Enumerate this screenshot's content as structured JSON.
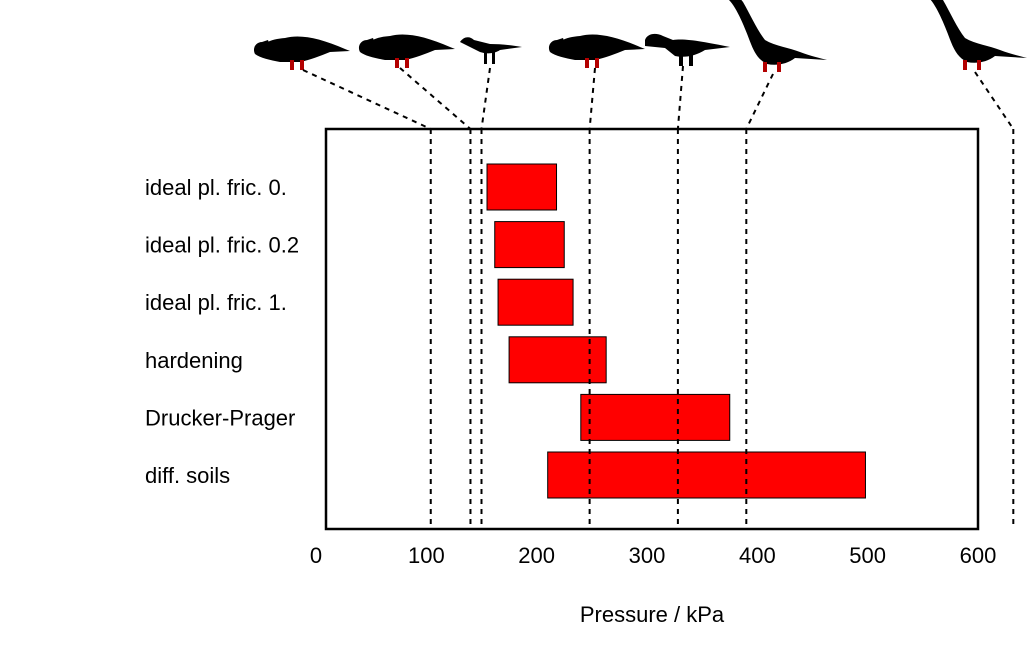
{
  "chart_data": {
    "type": "bar",
    "orientation": "horizontal",
    "title": "",
    "xlabel": "Pressure / kPa",
    "ylabel": "",
    "xlim": [
      0,
      600
    ],
    "xticks": [
      0,
      100,
      200,
      300,
      400,
      500,
      600
    ],
    "grid": false,
    "bar_color": "#ff0000",
    "categories": [
      "ideal pl. fric. 0.",
      "ideal pl. fric. 0.2",
      "ideal pl. fric. 1.",
      "hardening",
      "Drucker-Prager",
      "diff. soils"
    ],
    "ranges": [
      [
        155,
        218
      ],
      [
        162,
        225
      ],
      [
        165,
        233
      ],
      [
        175,
        263
      ],
      [
        240,
        375
      ],
      [
        210,
        498
      ]
    ],
    "reference_lines": [
      {
        "name": "hadrosaur-1",
        "value": 104,
        "silhouette": "hadrosaur"
      },
      {
        "name": "hadrosaur-2",
        "value": 140,
        "silhouette": "hadrosaur"
      },
      {
        "name": "small-theropod",
        "value": 150,
        "silhouette": "small-theropod"
      },
      {
        "name": "hadrosaur-3",
        "value": 248,
        "silhouette": "hadrosaur"
      },
      {
        "name": "theropod",
        "value": 328,
        "silhouette": "theropod"
      },
      {
        "name": "sauropod-1",
        "value": 390,
        "silhouette": "sauropod"
      },
      {
        "name": "sauropod-2",
        "value": 632,
        "silhouette": "sauropod"
      }
    ]
  }
}
